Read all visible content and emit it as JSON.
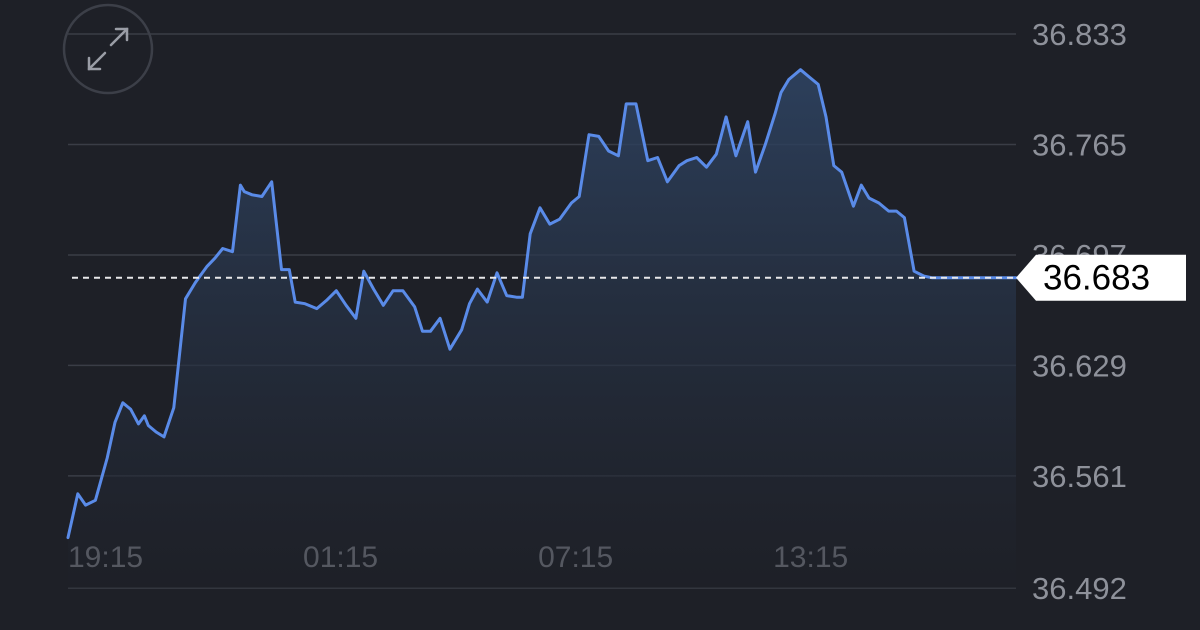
{
  "expand_button": {
    "icon": "expand-arrows-icon"
  },
  "current_value_label": "36.683",
  "colors": {
    "background": "#1e2027",
    "line": "#5a8be8",
    "fill_top": "#2f4565",
    "grid": "#3a3d46",
    "tick_text": "#8e919a",
    "badge_bg": "#ffffff"
  },
  "chart_data": {
    "type": "area",
    "title": "",
    "xlabel": "",
    "ylabel": "",
    "ylim": [
      36.492,
      36.833
    ],
    "y_ticks": [
      "36.833",
      "36.765",
      "36.697",
      "36.629",
      "36.561",
      "36.492"
    ],
    "y_tick_values": [
      36.833,
      36.765,
      36.697,
      36.629,
      36.561,
      36.492
    ],
    "x_ticks": [
      "19:15",
      "01:15",
      "07:15",
      "13:15"
    ],
    "x_tick_hours": [
      0,
      6,
      12,
      18
    ],
    "x_range_hours": [
      0,
      24.2
    ],
    "current_value": 36.683,
    "grid": true,
    "series": [
      {
        "x": [
          0,
          0.25,
          0.45,
          0.7,
          1.0,
          1.2,
          1.4,
          1.6,
          1.8,
          1.95,
          2.05,
          2.25,
          2.45,
          2.7,
          3.0,
          3.25,
          3.4,
          3.55,
          3.75,
          3.95,
          4.2,
          4.4,
          4.5,
          4.7,
          4.95,
          5.2,
          5.45,
          5.65,
          5.8,
          6.05,
          6.35,
          6.6,
          6.85,
          7.1,
          7.35,
          7.55,
          7.8,
          8.05,
          8.3,
          8.55,
          8.85,
          9.05,
          9.25,
          9.5,
          9.75,
          10.05,
          10.25,
          10.45,
          10.7,
          10.95,
          11.2,
          11.45,
          11.6,
          11.8,
          12.05,
          12.3,
          12.55,
          12.85,
          13.05,
          13.3,
          13.55,
          13.8,
          14.05,
          14.25,
          14.5,
          14.8,
          15.05,
          15.3,
          15.6,
          15.8,
          16.05,
          16.3,
          16.55,
          16.8,
          17.05,
          17.35,
          17.55,
          17.8,
          18.05,
          18.2,
          18.4,
          18.7,
          18.95,
          19.15,
          19.35,
          19.55,
          19.75,
          20.05,
          20.25,
          20.45,
          20.7,
          20.95,
          21.15,
          21.35,
          21.6,
          21.85,
          22.05,
          22.3,
          22.55,
          22.85,
          23.1,
          23.3,
          23.5,
          23.8,
          24.2
        ],
        "y": [
          36.523,
          36.55,
          36.543,
          36.546,
          36.572,
          36.594,
          36.606,
          36.602,
          36.593,
          36.598,
          36.592,
          36.588,
          36.585,
          36.603,
          36.67,
          36.68,
          36.685,
          36.69,
          36.695,
          36.701,
          36.699,
          36.74,
          36.736,
          36.734,
          36.733,
          36.742,
          36.688,
          36.688,
          36.668,
          36.667,
          36.664,
          36.669,
          36.675,
          36.666,
          36.658,
          36.687,
          36.676,
          36.666,
          36.675,
          36.675,
          36.665,
          36.65,
          36.65,
          36.658,
          36.639,
          36.651,
          36.667,
          36.676,
          36.668,
          36.686,
          36.672,
          36.671,
          36.671,
          36.71,
          36.726,
          36.716,
          36.719,
          36.729,
          36.733,
          36.771,
          36.77,
          36.761,
          36.758,
          36.79,
          36.79,
          36.755,
          36.757,
          36.742,
          36.752,
          36.755,
          36.757,
          36.751,
          36.759,
          36.782,
          36.758,
          36.779,
          36.748,
          36.765,
          36.784,
          36.797,
          36.805,
          36.811,
          36.806,
          36.802,
          36.782,
          36.752,
          36.748,
          36.727,
          36.74,
          36.732,
          36.729,
          36.724,
          36.724,
          36.72,
          36.687,
          36.684,
          36.683,
          36.683,
          36.683,
          36.683,
          36.683,
          36.683,
          36.683,
          36.683,
          36.683
        ]
      }
    ]
  }
}
